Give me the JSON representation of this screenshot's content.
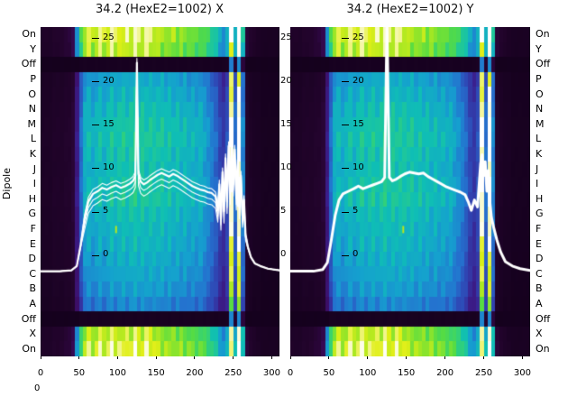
{
  "figure": {
    "left_axis_label": "Dipole",
    "stray_zero": "0"
  },
  "chart_data": {
    "type": "heatmap",
    "overlay_type": "line",
    "overlay_color": "#ffffff",
    "x_range": [
      0,
      310
    ],
    "y_range": [
      -11.6,
      26.3
    ],
    "x_ticks": [
      0,
      50,
      100,
      150,
      200,
      250,
      300
    ],
    "y_ticks": [
      25,
      20,
      15,
      10,
      5,
      0
    ],
    "row_labels": [
      "On",
      "Y",
      "Off",
      "P",
      "O",
      "N",
      "M",
      "L",
      "K",
      "J",
      "I",
      "H",
      "G",
      "F",
      "E",
      "D",
      "C",
      "B",
      "A",
      "Off",
      "X",
      "On"
    ],
    "row_types": [
      "bright",
      "bright",
      "off",
      "main",
      "main",
      "main",
      "main",
      "main",
      "main",
      "main",
      "main",
      "main",
      "main",
      "main",
      "main",
      "main",
      "main",
      "main",
      "main",
      "off",
      "bright",
      "bright"
    ],
    "row_gain": [
      1.0,
      0.95,
      1.0,
      0.9,
      0.95,
      1.0,
      1.04,
      1.06,
      1.03,
      1.01,
      1.04,
      1.05,
      1.0,
      0.97,
      0.95,
      0.92,
      0.89,
      0.85,
      0.78,
      1.0,
      0.95,
      1.0
    ],
    "colormap": [
      [
        0.0,
        "#100018"
      ],
      [
        0.08,
        "#24042e"
      ],
      [
        0.16,
        "#3c0a5e"
      ],
      [
        0.24,
        "#3b1e8c"
      ],
      [
        0.32,
        "#2f46b4"
      ],
      [
        0.4,
        "#2472cf"
      ],
      [
        0.48,
        "#15a0cf"
      ],
      [
        0.56,
        "#0fbfb4"
      ],
      [
        0.64,
        "#2ecf7f"
      ],
      [
        0.72,
        "#55dc44"
      ],
      [
        0.8,
        "#9ae626"
      ],
      [
        0.88,
        "#e0ef16"
      ],
      [
        0.94,
        "#f4f6a0"
      ],
      [
        1.0,
        "#ffffff"
      ]
    ],
    "profiles": {
      "main": [
        0.05,
        0.05,
        0.05,
        0.06,
        0.06,
        0.06,
        0.07,
        0.07,
        0.09,
        0.22,
        0.38,
        0.5,
        0.53,
        0.49,
        0.52,
        0.55,
        0.51,
        0.54,
        0.57,
        0.53,
        0.56,
        0.58,
        0.54,
        0.57,
        0.59,
        0.55,
        0.58,
        0.55,
        0.57,
        0.56,
        0.55,
        0.57,
        0.53,
        0.56,
        0.52,
        0.55,
        0.51,
        0.54,
        0.5,
        0.52,
        0.49,
        0.51,
        0.47,
        0.44,
        0.41,
        0.37,
        0.31,
        0.28,
        0.33,
        0.97,
        0.38,
        1.0,
        0.42,
        0.07,
        0.05,
        0.04,
        0.04,
        0.03,
        0.03,
        0.03,
        0.03,
        0.03
      ],
      "bright": [
        0.06,
        0.06,
        0.06,
        0.07,
        0.07,
        0.08,
        0.09,
        0.1,
        0.14,
        0.45,
        0.68,
        0.84,
        0.9,
        0.82,
        0.88,
        0.93,
        0.86,
        0.9,
        0.95,
        0.88,
        0.92,
        0.86,
        0.93,
        0.88,
        0.96,
        0.9,
        0.87,
        0.94,
        0.9,
        0.87,
        0.84,
        0.8,
        0.83,
        0.78,
        0.82,
        0.77,
        0.8,
        0.75,
        0.78,
        0.74,
        0.72,
        0.74,
        0.7,
        0.67,
        0.63,
        0.58,
        0.5,
        0.46,
        0.52,
        0.97,
        0.55,
        1.0,
        0.58,
        0.1,
        0.07,
        0.06,
        0.05,
        0.04,
        0.04,
        0.04,
        0.04,
        0.04
      ],
      "off": [
        0.02,
        0.02,
        0.02,
        0.02,
        0.02,
        0.02,
        0.02,
        0.02,
        0.02,
        0.02,
        0.03,
        0.03,
        0.03,
        0.03,
        0.03,
        0.03,
        0.03,
        0.03,
        0.03,
        0.03,
        0.03,
        0.03,
        0.03,
        0.03,
        0.03,
        0.03,
        0.03,
        0.03,
        0.03,
        0.03,
        0.03,
        0.03,
        0.03,
        0.03,
        0.03,
        0.03,
        0.03,
        0.03,
        0.03,
        0.03,
        0.03,
        0.03,
        0.03,
        0.03,
        0.03,
        0.03,
        0.03,
        0.03,
        0.04,
        0.42,
        0.08,
        0.46,
        0.1,
        0.02,
        0.02,
        0.02,
        0.02,
        0.02,
        0.02,
        0.02,
        0.02,
        0.02
      ]
    },
    "panels": [
      {
        "title": "34.2 (HexE2=1002) X",
        "line_width": 2.2,
        "line_offsets": [
          0,
          -0.7,
          -1.35,
          0.5
        ],
        "marker": {
          "x": 98,
          "v": 3.0,
          "color": "#b5e61d"
        },
        "line": [
          [
            0,
            -1.8
          ],
          [
            25,
            -1.8
          ],
          [
            40,
            -1.7
          ],
          [
            47,
            -1.2
          ],
          [
            52,
            1.2
          ],
          [
            57,
            4.2
          ],
          [
            62,
            6.2
          ],
          [
            68,
            7.1
          ],
          [
            74,
            7.4
          ],
          [
            80,
            7.8
          ],
          [
            86,
            7.6
          ],
          [
            92,
            7.9
          ],
          [
            98,
            8.1
          ],
          [
            104,
            7.8
          ],
          [
            110,
            8.0
          ],
          [
            116,
            8.3
          ],
          [
            120,
            8.6
          ],
          [
            123,
            9.2
          ],
          [
            125,
            22.2
          ],
          [
            127,
            9.4
          ],
          [
            130,
            8.5
          ],
          [
            134,
            8.2
          ],
          [
            138,
            8.4
          ],
          [
            142,
            8.7
          ],
          [
            147,
            9.0
          ],
          [
            152,
            9.3
          ],
          [
            157,
            9.5
          ],
          [
            162,
            9.3
          ],
          [
            167,
            9.1
          ],
          [
            172,
            9.4
          ],
          [
            177,
            9.2
          ],
          [
            182,
            8.9
          ],
          [
            187,
            8.6
          ],
          [
            192,
            8.3
          ],
          [
            197,
            8.0
          ],
          [
            202,
            7.8
          ],
          [
            207,
            7.6
          ],
          [
            212,
            7.5
          ],
          [
            217,
            7.3
          ],
          [
            222,
            7.2
          ],
          [
            227,
            6.8
          ],
          [
            230,
            5.2
          ],
          [
            232,
            8.2
          ],
          [
            234,
            4.2
          ],
          [
            236,
            9.6
          ],
          [
            238,
            5.1
          ],
          [
            240,
            11.2
          ],
          [
            242,
            6.2
          ],
          [
            244,
            12.6
          ],
          [
            246,
            7.2
          ],
          [
            248,
            13.0
          ],
          [
            250,
            8.2
          ],
          [
            252,
            12.2
          ],
          [
            254,
            6.6
          ],
          [
            256,
            11.0
          ],
          [
            258,
            5.6
          ],
          [
            260,
            9.2
          ],
          [
            262,
            4.6
          ],
          [
            264,
            6.4
          ],
          [
            266,
            2.4
          ],
          [
            269,
            1.0
          ],
          [
            273,
            -0.2
          ],
          [
            278,
            -0.9
          ],
          [
            285,
            -1.2
          ],
          [
            295,
            -1.5
          ],
          [
            310,
            -1.7
          ]
        ]
      },
      {
        "title": "34.2 (HexE2=1002) Y",
        "line_width": 3.0,
        "line_offsets": [
          0
        ],
        "marker": {
          "x": 146,
          "v": 3.0,
          "color": "#b5e61d"
        },
        "line": [
          [
            0,
            -1.8
          ],
          [
            30,
            -1.8
          ],
          [
            42,
            -1.6
          ],
          [
            48,
            -0.8
          ],
          [
            53,
            1.8
          ],
          [
            58,
            4.6
          ],
          [
            63,
            6.4
          ],
          [
            68,
            7.1
          ],
          [
            75,
            7.4
          ],
          [
            82,
            7.7
          ],
          [
            88,
            8.0
          ],
          [
            94,
            7.7
          ],
          [
            100,
            7.9
          ],
          [
            106,
            8.1
          ],
          [
            112,
            8.3
          ],
          [
            118,
            8.5
          ],
          [
            122,
            9.0
          ],
          [
            125,
            27.0
          ],
          [
            128,
            9.0
          ],
          [
            132,
            8.6
          ],
          [
            137,
            8.8
          ],
          [
            142,
            9.1
          ],
          [
            148,
            9.4
          ],
          [
            154,
            9.6
          ],
          [
            160,
            9.5
          ],
          [
            166,
            9.4
          ],
          [
            172,
            9.5
          ],
          [
            178,
            9.1
          ],
          [
            184,
            8.8
          ],
          [
            190,
            8.5
          ],
          [
            196,
            8.2
          ],
          [
            202,
            7.9
          ],
          [
            208,
            7.7
          ],
          [
            214,
            7.5
          ],
          [
            220,
            7.3
          ],
          [
            226,
            7.0
          ],
          [
            230,
            6.2
          ],
          [
            234,
            5.2
          ],
          [
            238,
            6.4
          ],
          [
            242,
            5.6
          ],
          [
            246,
            10.6
          ],
          [
            248,
            11.6
          ],
          [
            250,
            9.2
          ],
          [
            252,
            10.8
          ],
          [
            254,
            7.4
          ],
          [
            256,
            9.8
          ],
          [
            258,
            6.2
          ],
          [
            260,
            4.4
          ],
          [
            263,
            3.2
          ],
          [
            267,
            1.8
          ],
          [
            272,
            0.4
          ],
          [
            278,
            -0.7
          ],
          [
            287,
            -1.2
          ],
          [
            297,
            -1.5
          ],
          [
            310,
            -1.7
          ]
        ]
      }
    ]
  }
}
